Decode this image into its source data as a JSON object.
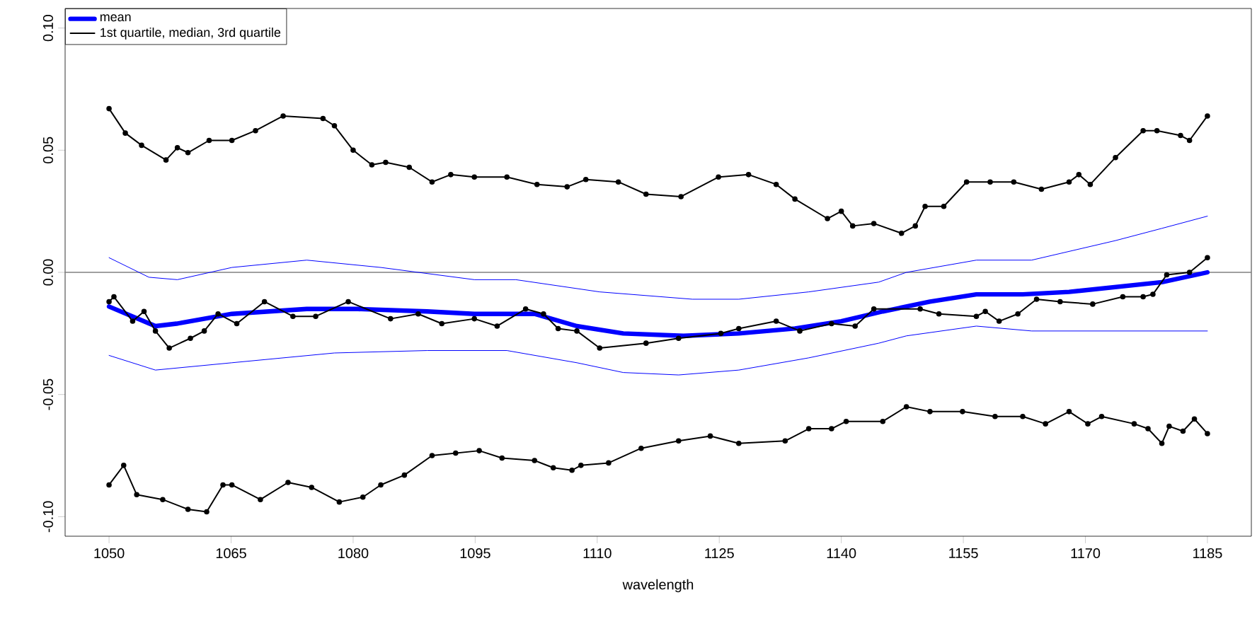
{
  "chart_data": {
    "type": "line",
    "xlabel": "wavelength",
    "xlim": [
      1044.6,
      1190.4
    ],
    "ylim": [
      -0.108,
      0.108
    ],
    "xticks": [
      1050,
      1065,
      1080,
      1095,
      1110,
      1125,
      1140,
      1155,
      1170,
      1185
    ],
    "yticks": [
      {
        "value": -0.1,
        "label": "-0.10"
      },
      -0.05,
      {
        "value": 0,
        "label": "0.00"
      },
      0.05,
      {
        "value": 0.1,
        "label": "0.10"
      }
    ],
    "legend": "top left",
    "grid": false,
    "ref_lines": [
      {
        "axis": "y",
        "value": 0,
        "color": "#808080"
      }
    ],
    "series": [
      {
        "name": "mean",
        "color": "#0000ff",
        "marker": "none",
        "x": [
          1050,
          1055.7,
          1058.3,
          1065.1,
          1074.3,
          1080.6,
          1089.1,
          1094.9,
          1098.9,
          1102.3,
          1107.5,
          1113.2,
          1120.6,
          1127.4,
          1134.3,
          1140,
          1145.1,
          1150.9,
          1156.6,
          1162.3,
          1168,
          1173.7,
          1179.4,
          1185
        ],
        "values": [
          -0.014,
          -0.022,
          -0.021,
          -0.017,
          -0.015,
          -0.015,
          -0.016,
          -0.017,
          -0.017,
          -0.017,
          -0.022,
          -0.025,
          -0.026,
          -0.025,
          -0.023,
          -0.02,
          -0.016,
          -0.012,
          -0.009,
          -0.009,
          -0.008,
          -0.006,
          -0.004,
          0.0
        ]
      },
      {
        "name": "1st quartile, median, 3rd quartile",
        "color": "#000000",
        "marker": "circle",
        "x": [
          1050,
          1052,
          1054,
          1057,
          1058.4,
          1059.7,
          1062.3,
          1065.1,
          1068,
          1071.4,
          1076.3,
          1077.7,
          1080,
          1082.3,
          1084,
          1086.9,
          1089.7,
          1092,
          1094.9,
          1098.9,
          1102.6,
          1106.3,
          1108.6,
          1112.6,
          1116,
          1120.3,
          1124.9,
          1128.6,
          1132,
          1134.3,
          1138.3,
          1140,
          1141.4,
          1144,
          1147.4,
          1149.1,
          1150.3,
          1152.6,
          1155.4,
          1158.3,
          1161.2,
          1164.6,
          1168,
          1169.2,
          1170.6,
          1173.7,
          1177.1,
          1178.8,
          1181.7,
          1182.8,
          1185
        ],
        "values": [
          0.067,
          0.057,
          0.052,
          0.046,
          0.051,
          0.049,
          0.054,
          0.054,
          0.058,
          0.064,
          0.063,
          0.06,
          0.05,
          0.044,
          0.045,
          0.043,
          0.037,
          0.04,
          0.039,
          0.039,
          0.036,
          0.035,
          0.038,
          0.037,
          0.032,
          0.031,
          0.039,
          0.04,
          0.036,
          0.03,
          0.022,
          0.025,
          0.019,
          0.02,
          0.016,
          0.019,
          0.027,
          0.027,
          0.037,
          0.037,
          0.037,
          0.034,
          0.037,
          0.04,
          0.036,
          0.047,
          0.058,
          0.058,
          0.056,
          0.054,
          0.064
        ]
      },
      {
        "color": "#000000",
        "marker": "circle",
        "x": [
          1050,
          1050.6,
          1052.9,
          1054.3,
          1055.7,
          1057.4,
          1060,
          1061.7,
          1063.4,
          1065.7,
          1069.1,
          1072.6,
          1075.4,
          1079.4,
          1084.6,
          1088,
          1090.9,
          1094.9,
          1097.7,
          1101.2,
          1103.4,
          1105.2,
          1107.5,
          1110.3,
          1116,
          1120,
          1125.2,
          1127.4,
          1132,
          1134.9,
          1138.8,
          1141.7,
          1144,
          1149.7,
          1152,
          1156.6,
          1157.7,
          1159.4,
          1161.7,
          1164,
          1166.9,
          1170.9,
          1174.6,
          1177.1,
          1178.3,
          1180,
          1182.8,
          1185
        ],
        "values": [
          -0.012,
          -0.01,
          -0.02,
          -0.016,
          -0.024,
          -0.031,
          -0.027,
          -0.024,
          -0.017,
          -0.021,
          -0.012,
          -0.018,
          -0.018,
          -0.012,
          -0.019,
          -0.017,
          -0.021,
          -0.019,
          -0.022,
          -0.015,
          -0.017,
          -0.023,
          -0.024,
          -0.031,
          -0.029,
          -0.027,
          -0.025,
          -0.023,
          -0.02,
          -0.024,
          -0.021,
          -0.022,
          -0.015,
          -0.015,
          -0.017,
          -0.018,
          -0.016,
          -0.02,
          -0.017,
          -0.011,
          -0.012,
          -0.013,
          -0.01,
          -0.01,
          -0.009,
          -0.001,
          0.0,
          0.006
        ]
      },
      {
        "color": "#000000",
        "marker": "circle",
        "x": [
          1050,
          1051.8,
          1053.4,
          1056.6,
          1059.7,
          1062,
          1064,
          1065.1,
          1068.6,
          1072,
          1074.9,
          1078.3,
          1081.2,
          1083.4,
          1086.3,
          1089.7,
          1092.6,
          1095.5,
          1098.3,
          1102.3,
          1104.6,
          1106.9,
          1108,
          1111.4,
          1115.4,
          1120,
          1123.9,
          1127.4,
          1133.1,
          1136,
          1138.8,
          1140.6,
          1145.1,
          1148,
          1150.9,
          1154.9,
          1158.9,
          1162.3,
          1165.1,
          1168,
          1170.3,
          1172,
          1176,
          1177.7,
          1179.4,
          1180.3,
          1182,
          1183.4,
          1185
        ],
        "values": [
          -0.087,
          -0.079,
          -0.091,
          -0.093,
          -0.097,
          -0.098,
          -0.087,
          -0.087,
          -0.093,
          -0.086,
          -0.088,
          -0.094,
          -0.092,
          -0.087,
          -0.083,
          -0.075,
          -0.074,
          -0.073,
          -0.076,
          -0.077,
          -0.08,
          -0.081,
          -0.079,
          -0.078,
          -0.072,
          -0.069,
          -0.067,
          -0.07,
          -0.069,
          -0.064,
          -0.064,
          -0.061,
          -0.061,
          -0.055,
          -0.057,
          -0.057,
          -0.059,
          -0.059,
          -0.062,
          -0.057,
          -0.062,
          -0.059,
          -0.062,
          -0.064,
          -0.07,
          -0.063,
          -0.065,
          -0.06,
          -0.066
        ]
      },
      {
        "color": "#0000ff",
        "marker": "none",
        "x": [
          1050,
          1054.9,
          1058.4,
          1065.1,
          1074.3,
          1083.4,
          1094.9,
          1100,
          1110.3,
          1121.7,
          1127.4,
          1136,
          1144.6,
          1148,
          1156.6,
          1163.4,
          1173.7,
          1179.4,
          1185
        ],
        "values": [
          0.006,
          -0.002,
          -0.003,
          0.002,
          0.005,
          0.002,
          -0.003,
          -0.003,
          -0.008,
          -0.011,
          -0.011,
          -0.008,
          -0.004,
          0.0,
          0.005,
          0.005,
          0.013,
          0.018,
          0.023
        ]
      },
      {
        "color": "#0000ff",
        "marker": "none",
        "x": [
          1050,
          1055.7,
          1065.1,
          1077.7,
          1089.1,
          1098.9,
          1107.5,
          1113.2,
          1120,
          1127.4,
          1136,
          1144.6,
          1148,
          1156.6,
          1163.4,
          1173.7,
          1185
        ],
        "values": [
          -0.034,
          -0.04,
          -0.037,
          -0.033,
          -0.032,
          -0.032,
          -0.037,
          -0.041,
          -0.042,
          -0.04,
          -0.035,
          -0.029,
          -0.026,
          -0.022,
          -0.024,
          -0.024,
          -0.024
        ]
      }
    ]
  }
}
